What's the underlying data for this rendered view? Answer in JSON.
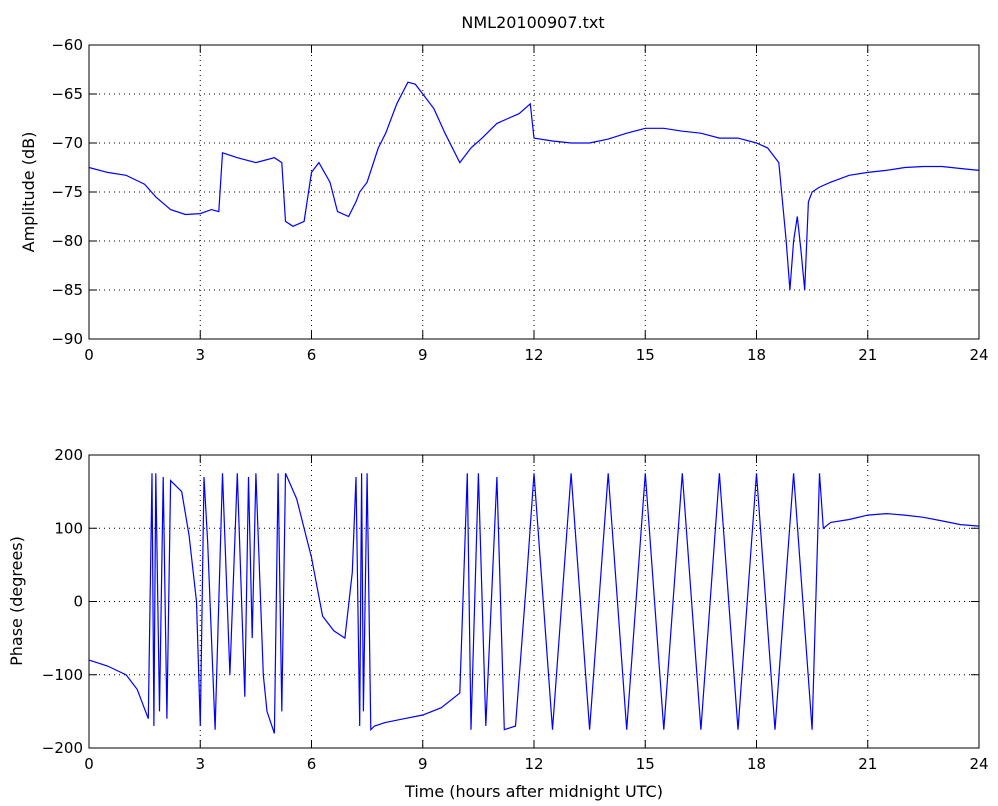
{
  "title": "NML20100907.txt",
  "line_color": "#0000ff",
  "chart_data": [
    {
      "type": "line",
      "ylabel": "Amplitude (dB)",
      "xlabel": "",
      "xlim": [
        0,
        24
      ],
      "ylim": [
        -90,
        -60
      ],
      "xticks": [
        "0",
        "3",
        "6",
        "9",
        "12",
        "15",
        "18",
        "21",
        "24"
      ],
      "yticks": [
        "-90",
        "-85",
        "-80",
        "-75",
        "-70",
        "-65",
        "-60"
      ],
      "grid": true,
      "series": [
        {
          "x": [
            0,
            0.5,
            1,
            1.5,
            1.8,
            2.2,
            2.6,
            3,
            3.3,
            3.5,
            3.6,
            4,
            4.5,
            5,
            5.2,
            5.3,
            5.5,
            5.8,
            6,
            6.2,
            6.5,
            6.7,
            7,
            7.2,
            7.3,
            7.5,
            7.8,
            8,
            8.3,
            8.6,
            8.8,
            9,
            9.3,
            9.6,
            10,
            10.3,
            10.6,
            11,
            11.3,
            11.6,
            11.9,
            12,
            12.5,
            13,
            13.5,
            14,
            14.5,
            15,
            15.5,
            16,
            16.5,
            17,
            17.5,
            18,
            18.3,
            18.6,
            18.8,
            18.9,
            19,
            19.1,
            19.2,
            19.3,
            19.4,
            19.5,
            19.7,
            20,
            20.5,
            21,
            21.5,
            22,
            22.5,
            23,
            23.5,
            24
          ],
          "y": [
            -72.5,
            -73,
            -73.3,
            -74.2,
            -75.5,
            -76.8,
            -77.3,
            -77.2,
            -76.8,
            -77,
            -71,
            -71.5,
            -72,
            -71.5,
            -72,
            -78,
            -78.5,
            -78,
            -73,
            -72,
            -74,
            -77,
            -77.5,
            -76,
            -75,
            -74,
            -70.5,
            -69,
            -66,
            -63.8,
            -64,
            -65,
            -66.5,
            -69,
            -72,
            -70.5,
            -69.5,
            -68,
            -67.5,
            -67,
            -66,
            -69.5,
            -69.8,
            -70,
            -70,
            -69.6,
            -69,
            -68.5,
            -68.5,
            -68.8,
            -69,
            -69.5,
            -69.5,
            -70,
            -70.5,
            -72,
            -80,
            -85,
            -80,
            -77.5,
            -81,
            -85,
            -76,
            -75,
            -74.5,
            -74,
            -73.3,
            -73,
            -72.8,
            -72.5,
            -72.4,
            -72.4,
            -72.6,
            -72.8
          ]
        }
      ]
    },
    {
      "type": "line",
      "ylabel": "Phase (degrees)",
      "xlabel": "Time (hours after midnight UTC)",
      "xlim": [
        0,
        24
      ],
      "ylim": [
        -200,
        200
      ],
      "xticks": [
        "0",
        "3",
        "6",
        "9",
        "12",
        "15",
        "18",
        "21",
        "24"
      ],
      "yticks": [
        "-200",
        "-100",
        "0",
        "100",
        "200"
      ],
      "grid": true,
      "series": [
        {
          "x": [
            0,
            0.5,
            1,
            1.3,
            1.6,
            1.7,
            1.75,
            1.8,
            1.9,
            2,
            2.1,
            2.2,
            2.3,
            2.5,
            2.7,
            2.9,
            3,
            3.1,
            3.2,
            3.4,
            3.6,
            3.8,
            4,
            4.2,
            4.3,
            4.4,
            4.5,
            4.7,
            4.8,
            5,
            5.1,
            5.2,
            5.3,
            5.6,
            6,
            6.3,
            6.6,
            6.9,
            7.1,
            7.2,
            7.3,
            7.35,
            7.4,
            7.5,
            7.6,
            7.7,
            8,
            8.5,
            9,
            9.5,
            10,
            10.2,
            10.3,
            10.5,
            10.7,
            11,
            11.2,
            11.5,
            11.8,
            12,
            12.5,
            13,
            13.5,
            14,
            14.5,
            15,
            15.5,
            16,
            16.5,
            17,
            17.5,
            18,
            18.5,
            19,
            19.5,
            19.7,
            19.8,
            20,
            20.5,
            21,
            21.5,
            22,
            22.5,
            23,
            23.5,
            24
          ],
          "y": [
            -80,
            -88,
            -100,
            -120,
            -160,
            175,
            -170,
            175,
            -150,
            170,
            -160,
            165,
            160,
            150,
            90,
            0,
            -170,
            170,
            80,
            -175,
            175,
            -100,
            175,
            -130,
            170,
            -50,
            175,
            -100,
            -150,
            -180,
            175,
            -150,
            175,
            140,
            60,
            -20,
            -40,
            -50,
            40,
            170,
            -170,
            175,
            -150,
            175,
            -175,
            -170,
            -165,
            -160,
            -155,
            -145,
            -125,
            175,
            -175,
            175,
            -170,
            170,
            -175,
            -170,
            30,
            175,
            -175,
            175,
            -175,
            175,
            -175,
            175,
            -175,
            175,
            -175,
            175,
            -175,
            175,
            -175,
            175,
            -175,
            175,
            100,
            108,
            112,
            118,
            120,
            118,
            115,
            110,
            105,
            103
          ]
        }
      ]
    }
  ]
}
